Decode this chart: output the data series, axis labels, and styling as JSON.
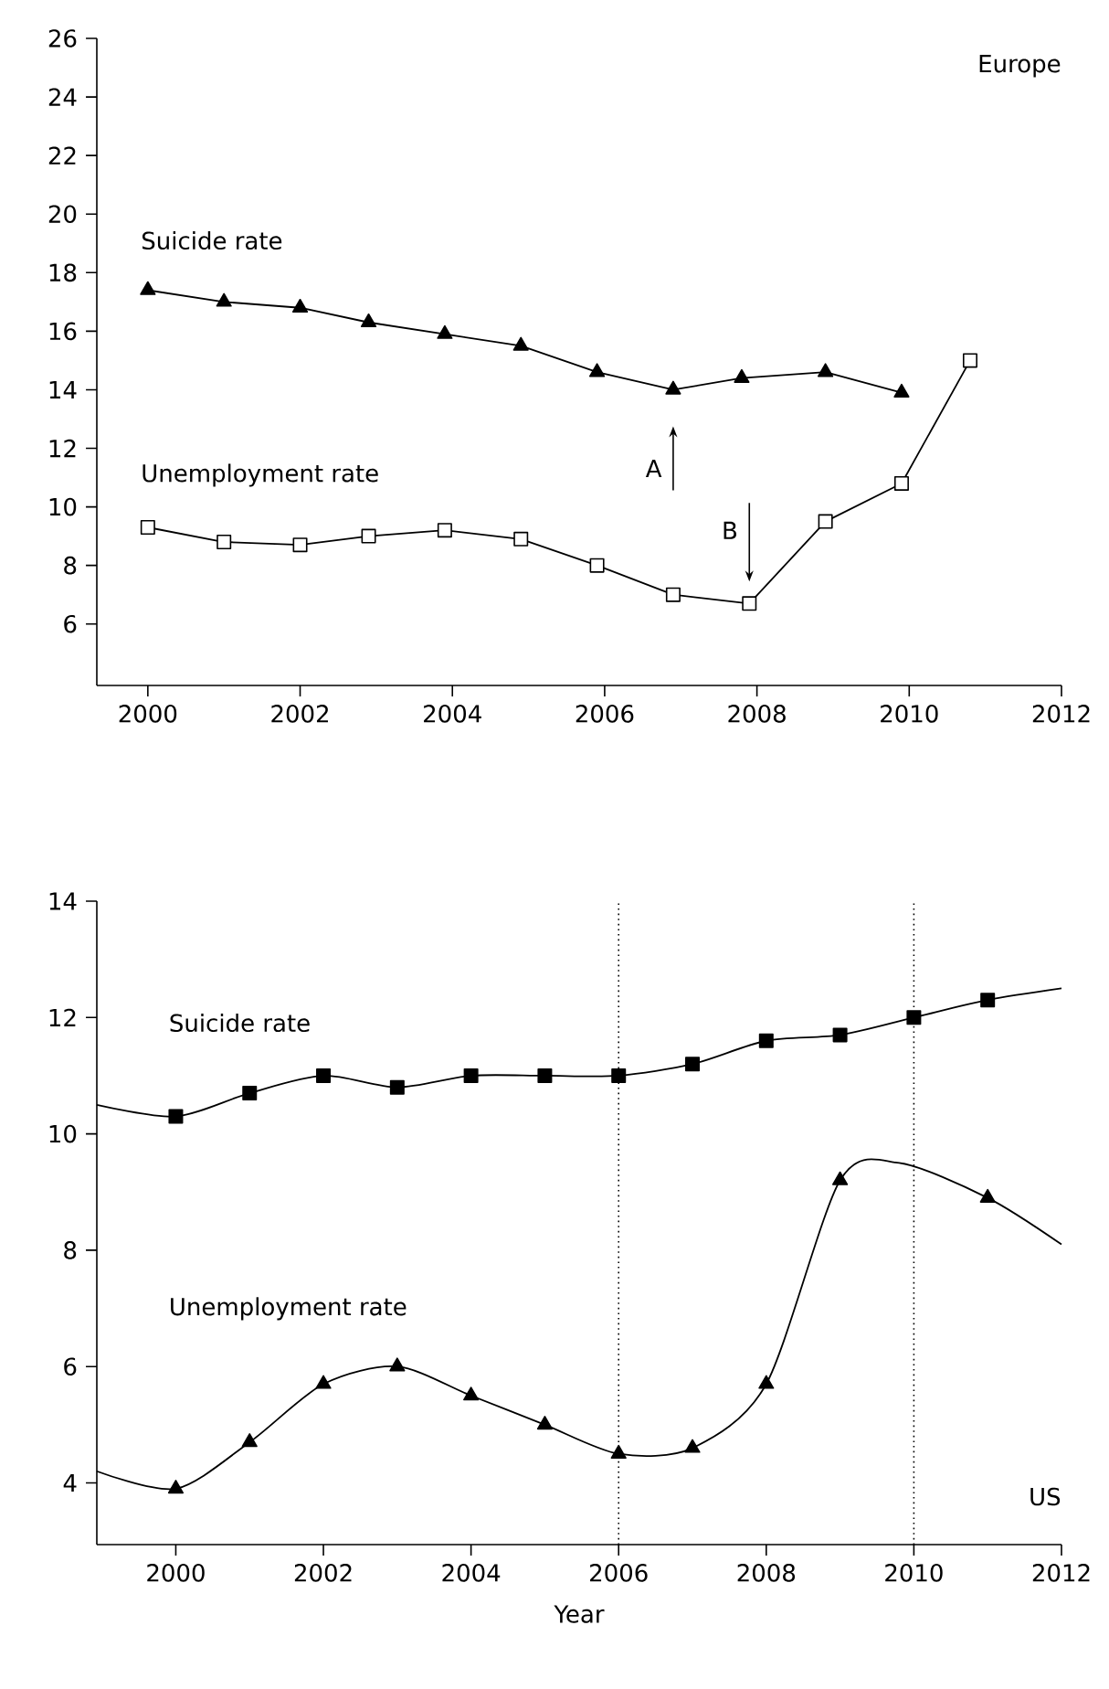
{
  "chart_data": [
    {
      "type": "line",
      "title": "Europe",
      "xlim": [
        1999.33,
        2012
      ],
      "xticks": [
        2000,
        2002,
        2004,
        2006,
        2008,
        2010,
        2012
      ],
      "ylim": [
        3.9,
        26
      ],
      "yticks": [
        6,
        8,
        10,
        12,
        14,
        16,
        18,
        20,
        22,
        24,
        26
      ],
      "grid": false,
      "annotations": [
        "A",
        "B"
      ],
      "series": [
        {
          "name": "Suicide rate",
          "color": "#000000",
          "marker": "triangle",
          "x": [
            2000,
            2001,
            2002,
            2002.9,
            2003.9,
            2004.9,
            2005.9,
            2006.9,
            2007.8,
            2008.9,
            2009.9
          ],
          "values": [
            17.4,
            17.0,
            16.8,
            16.3,
            15.9,
            15.5,
            14.6,
            14.0,
            14.4,
            14.6,
            13.9
          ]
        },
        {
          "name": "Unemployment rate",
          "color": "#000000",
          "marker": "square",
          "x": [
            2000,
            2001,
            2002,
            2002.9,
            2003.9,
            2004.9,
            2005.9,
            2006.9,
            2007.9,
            2008.9,
            2009.9,
            2010.8
          ],
          "values": [
            9.3,
            8.8,
            8.7,
            9.0,
            9.2,
            8.9,
            8.0,
            7.0,
            6.7,
            9.5,
            10.8,
            15.0
          ]
        }
      ]
    },
    {
      "type": "line",
      "title": "US",
      "xlabel": "Year",
      "xlim": [
        1998.93,
        2012
      ],
      "xticks": [
        2000,
        2002,
        2004,
        2006,
        2008,
        2010,
        2012
      ],
      "ylim": [
        2.94,
        14
      ],
      "yticks": [
        4,
        6,
        8,
        10,
        12,
        14
      ],
      "grid": false,
      "ref_lines": [
        {
          "axis": "x",
          "value": 2006,
          "line_style": "dotted"
        },
        {
          "axis": "x",
          "value": 2010,
          "line_style": "dotted"
        }
      ],
      "series": [
        {
          "type": "line",
          "color": "#000000",
          "marker": "none",
          "x": [
            1998.93,
            2000,
            2001,
            2002,
            2003,
            2004,
            2005,
            2006,
            2007,
            2008,
            2009,
            2010,
            2011,
            2012
          ],
          "values": [
            10.5,
            10.3,
            10.7,
            11.0,
            10.8,
            11.0,
            11.0,
            11.0,
            11.2,
            11.6,
            11.7,
            12.0,
            12.3,
            12.5
          ]
        },
        {
          "type": "scatter",
          "name": "Suicide rate",
          "color": "#000000",
          "marker": "square",
          "x": [
            2000,
            2001,
            2002,
            2003,
            2004,
            2005,
            2006,
            2007,
            2008,
            2009,
            2010,
            2011
          ],
          "values": [
            10.3,
            10.7,
            11.0,
            10.8,
            11.0,
            11.0,
            11.0,
            11.2,
            11.6,
            11.7,
            12.0,
            12.3
          ]
        },
        {
          "type": "line",
          "color": "#000000",
          "marker": "none",
          "x": [
            1998.93,
            2000,
            2001,
            2002,
            2003,
            2004,
            2005,
            2006,
            2007,
            2008,
            2009,
            2009.8,
            2011,
            2012
          ],
          "values": [
            4.2,
            3.9,
            4.7,
            5.7,
            6.0,
            5.5,
            5.0,
            4.5,
            4.6,
            5.7,
            9.2,
            9.5,
            8.9,
            8.1
          ]
        },
        {
          "type": "scatter",
          "name": "Unemployment rate",
          "color": "#000000",
          "marker": "triangle",
          "x": [
            2000,
            2001,
            2002,
            2003,
            2004,
            2005,
            2006,
            2007,
            2008,
            2009,
            2011
          ],
          "values": [
            3.9,
            4.7,
            5.7,
            6.0,
            5.5,
            5.0,
            4.5,
            4.6,
            5.7,
            9.2,
            8.9
          ]
        }
      ]
    }
  ]
}
